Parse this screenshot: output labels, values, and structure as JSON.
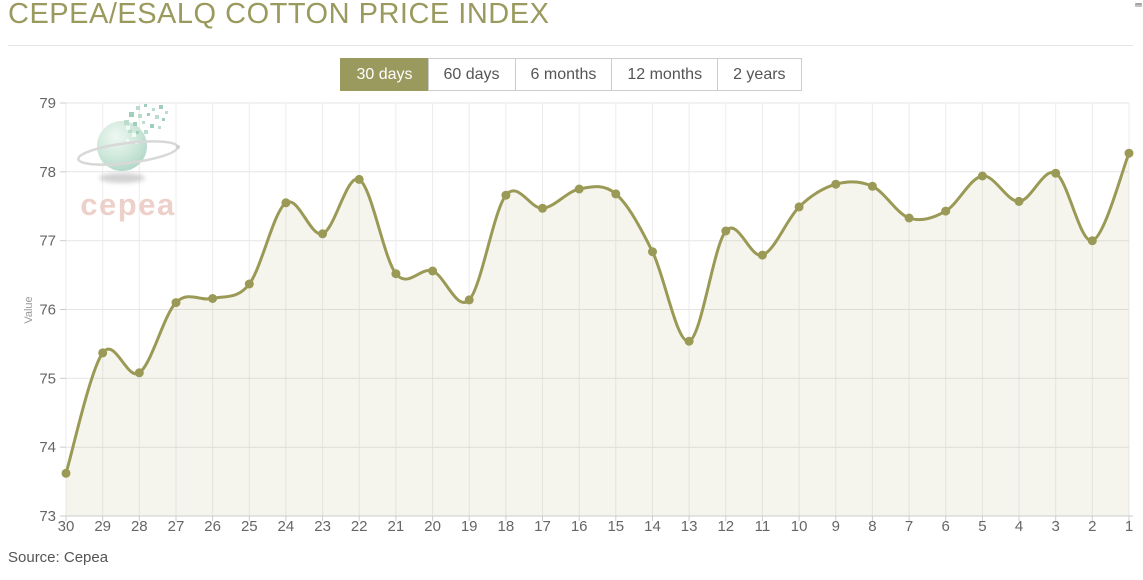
{
  "page": {
    "title": "CEPEA/ESALQ COTTON PRICE INDEX",
    "source_label": "Source: Cepea"
  },
  "colors": {
    "accent": "#9a9a5e",
    "line": "#9a9a56",
    "area_fill": "rgba(154,154,86,0.10)",
    "grid_horizontal": "#e5e5e5",
    "grid_vertical": "#ececec",
    "axis_line": "#cccccc",
    "axis_text": "#666666",
    "tab_border": "#cccccc",
    "tab_text": "#555555",
    "logo_text_color": "#e9c4bc"
  },
  "tabs": [
    {
      "label": "30 days",
      "active": true
    },
    {
      "label": "60 days",
      "active": false
    },
    {
      "label": "6 months",
      "active": false
    },
    {
      "label": "12 months",
      "active": false
    },
    {
      "label": "2 years",
      "active": false
    }
  ],
  "logo": {
    "text": "cepea"
  },
  "chart_data": {
    "type": "area",
    "title": "CEPEA/ESALQ COTTON PRICE INDEX",
    "xlabel": "",
    "ylabel": "Value",
    "legend": "none",
    "grid": true,
    "categories": [
      "30",
      "29",
      "28",
      "27",
      "26",
      "25",
      "24",
      "23",
      "22",
      "21",
      "20",
      "19",
      "18",
      "17",
      "16",
      "15",
      "14",
      "13",
      "12",
      "11",
      "10",
      "9",
      "8",
      "7",
      "6",
      "5",
      "4",
      "3",
      "2",
      "1"
    ],
    "values": [
      73.62,
      75.37,
      75.08,
      76.1,
      76.16,
      76.37,
      77.55,
      77.1,
      77.89,
      76.52,
      76.56,
      76.14,
      77.66,
      77.47,
      77.75,
      77.68,
      76.84,
      75.54,
      77.14,
      76.79,
      77.49,
      77.82,
      77.79,
      77.33,
      77.43,
      77.94,
      77.57,
      77.98,
      77.0,
      78.27
    ],
    "ylim": [
      73,
      79
    ],
    "y_ticks": [
      73,
      74,
      75,
      76,
      77,
      78,
      79
    ]
  }
}
